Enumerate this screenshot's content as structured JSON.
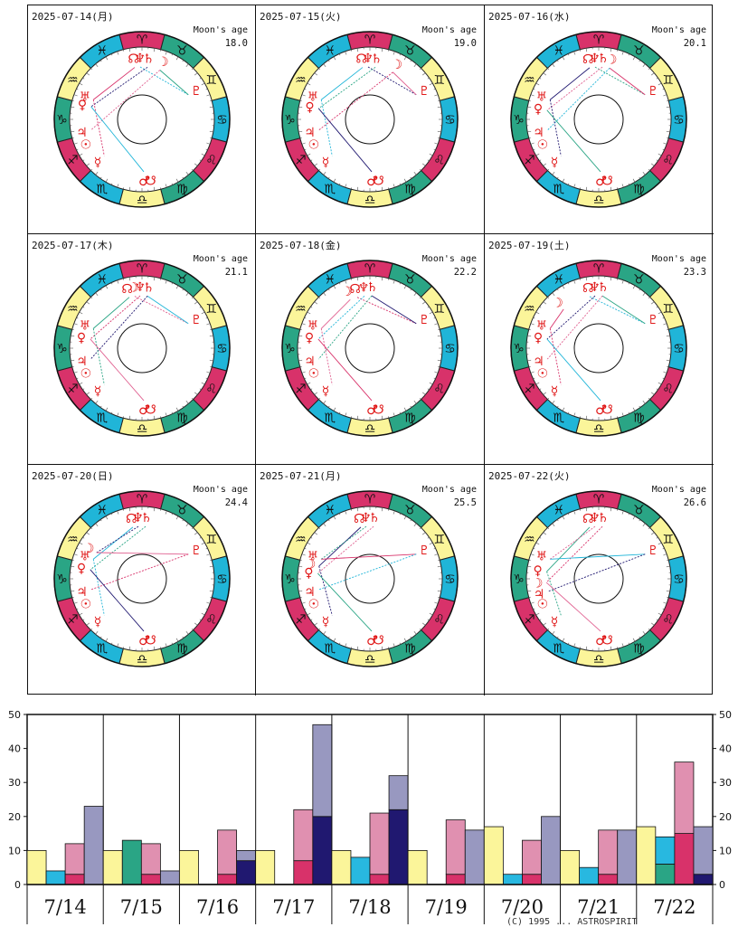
{
  "copyright": "(C) 1995  ... ASTROSPIRIT",
  "label_moons_age": "Moon's age",
  "sign_glyphs": [
    "♈",
    "♉",
    "♊",
    "♋",
    "♌",
    "♍",
    "♎",
    "♏",
    "♐",
    "♑",
    "♒",
    "♓"
  ],
  "sign_colors": [
    "#d8326a",
    "#2aa585",
    "#fbf59a",
    "#20b5d8",
    "#d8326a",
    "#2aa585",
    "#fbf59a",
    "#20b5d8",
    "#d8326a",
    "#2aa585",
    "#fbf59a",
    "#20b5d8"
  ],
  "cells": [
    {
      "date": "2025-07-14(月)",
      "moon_age": "18.0",
      "glyphs": [
        {
          "g": "☊",
          "l": 352
        },
        {
          "g": "♆",
          "l": 358
        },
        {
          "g": "♄",
          "l": 6
        },
        {
          "g": "☽",
          "l": 20
        },
        {
          "g": "♇",
          "l": 62
        },
        {
          "g": "♅",
          "l": 292
        },
        {
          "g": "♀",
          "l": 284
        },
        {
          "g": "♃",
          "l": 258
        },
        {
          "g": "☉",
          "l": 246
        },
        {
          "g": "☿",
          "l": 226
        },
        {
          "g": "♂",
          "l": 178
        },
        {
          "g": "☋",
          "l": 172
        }
      ]
    },
    {
      "date": "2025-07-15(火)",
      "moon_age": "19.0",
      "glyphs": [
        {
          "g": "☊",
          "l": 352
        },
        {
          "g": "♆",
          "l": 358
        },
        {
          "g": "♄",
          "l": 6
        },
        {
          "g": "☽",
          "l": 26
        },
        {
          "g": "♇",
          "l": 62
        },
        {
          "g": "♅",
          "l": 292
        },
        {
          "g": "♀",
          "l": 282
        },
        {
          "g": "♃",
          "l": 258
        },
        {
          "g": "☉",
          "l": 246
        },
        {
          "g": "☿",
          "l": 226
        },
        {
          "g": "♂",
          "l": 178
        },
        {
          "g": "☋",
          "l": 172
        }
      ]
    },
    {
      "date": "2025-07-16(水)",
      "moon_age": "20.1",
      "glyphs": [
        {
          "g": "☊",
          "l": 350
        },
        {
          "g": "♆",
          "l": 356
        },
        {
          "g": "♄",
          "l": 4
        },
        {
          "g": "☽",
          "l": 12
        },
        {
          "g": "♇",
          "l": 62
        },
        {
          "g": "♅",
          "l": 292
        },
        {
          "g": "♀",
          "l": 280
        },
        {
          "g": "♃",
          "l": 258
        },
        {
          "g": "☉",
          "l": 246
        },
        {
          "g": "☿",
          "l": 226
        },
        {
          "g": "♂",
          "l": 178
        },
        {
          "g": "☋",
          "l": 172
        }
      ]
    },
    {
      "date": "2025-07-17(木)",
      "moon_age": "21.1",
      "glyphs": [
        {
          "g": "☊",
          "l": 346
        },
        {
          "g": "☽",
          "l": 352
        },
        {
          "g": "♆",
          "l": 358
        },
        {
          "g": "♄",
          "l": 6
        },
        {
          "g": "♇",
          "l": 62
        },
        {
          "g": "♅",
          "l": 292
        },
        {
          "g": "♀",
          "l": 280
        },
        {
          "g": "♃",
          "l": 258
        },
        {
          "g": "☉",
          "l": 246
        },
        {
          "g": "☿",
          "l": 226
        },
        {
          "g": "♂",
          "l": 178
        },
        {
          "g": "☋",
          "l": 172
        }
      ]
    },
    {
      "date": "2025-07-18(金)",
      "moon_age": "22.2",
      "glyphs": [
        {
          "g": "☽",
          "l": 338
        },
        {
          "g": "☊",
          "l": 346
        },
        {
          "g": "♆",
          "l": 354
        },
        {
          "g": "♄",
          "l": 2
        },
        {
          "g": "♇",
          "l": 62
        },
        {
          "g": "♅",
          "l": 292
        },
        {
          "g": "♀",
          "l": 280
        },
        {
          "g": "♃",
          "l": 258
        },
        {
          "g": "☉",
          "l": 246
        },
        {
          "g": "☿",
          "l": 226
        },
        {
          "g": "♂",
          "l": 178
        },
        {
          "g": "☋",
          "l": 172
        }
      ]
    },
    {
      "date": "2025-07-19(土)",
      "moon_age": "23.3",
      "glyphs": [
        {
          "g": "☽",
          "l": 318
        },
        {
          "g": "☊",
          "l": 350
        },
        {
          "g": "♆",
          "l": 356
        },
        {
          "g": "♄",
          "l": 4
        },
        {
          "g": "♇",
          "l": 62
        },
        {
          "g": "♅",
          "l": 292
        },
        {
          "g": "♀",
          "l": 280
        },
        {
          "g": "♃",
          "l": 258
        },
        {
          "g": "☉",
          "l": 246
        },
        {
          "g": "☿",
          "l": 226
        },
        {
          "g": "♂",
          "l": 178
        },
        {
          "g": "☋",
          "l": 172
        }
      ]
    },
    {
      "date": "2025-07-20(日)",
      "moon_age": "24.4",
      "glyphs": [
        {
          "g": "☊",
          "l": 350
        },
        {
          "g": "♆",
          "l": 356
        },
        {
          "g": "♄",
          "l": 4
        },
        {
          "g": "♇",
          "l": 62
        },
        {
          "g": "☽",
          "l": 300
        },
        {
          "g": "♅",
          "l": 292
        },
        {
          "g": "♀",
          "l": 280
        },
        {
          "g": "♃",
          "l": 258
        },
        {
          "g": "☉",
          "l": 246
        },
        {
          "g": "☿",
          "l": 226
        },
        {
          "g": "♂",
          "l": 178
        },
        {
          "g": "☋",
          "l": 172
        }
      ]
    },
    {
      "date": "2025-07-21(月)",
      "moon_age": "25.5",
      "glyphs": [
        {
          "g": "☊",
          "l": 350
        },
        {
          "g": "♆",
          "l": 356
        },
        {
          "g": "♄",
          "l": 4
        },
        {
          "g": "♇",
          "l": 62
        },
        {
          "g": "♅",
          "l": 292
        },
        {
          "g": "☽",
          "l": 284
        },
        {
          "g": "♀",
          "l": 276
        },
        {
          "g": "♃",
          "l": 258
        },
        {
          "g": "☉",
          "l": 246
        },
        {
          "g": "☿",
          "l": 226
        },
        {
          "g": "♂",
          "l": 178
        },
        {
          "g": "☋",
          "l": 172
        }
      ]
    },
    {
      "date": "2025-07-22(火)",
      "moon_age": "26.6",
      "glyphs": [
        {
          "g": "☊",
          "l": 350
        },
        {
          "g": "♆",
          "l": 356
        },
        {
          "g": "♄",
          "l": 4
        },
        {
          "g": "♇",
          "l": 62
        },
        {
          "g": "♅",
          "l": 292
        },
        {
          "g": "♀",
          "l": 278
        },
        {
          "g": "☽",
          "l": 266
        },
        {
          "g": "♃",
          "l": 256
        },
        {
          "g": "☉",
          "l": 246
        },
        {
          "g": "☿",
          "l": 226
        },
        {
          "g": "♂",
          "l": 178
        },
        {
          "g": "☋",
          "l": 172
        }
      ]
    }
  ],
  "chart_data": {
    "type": "bar",
    "categories": [
      "7/14",
      "7/15",
      "7/16",
      "7/17",
      "7/18",
      "7/19",
      "7/20",
      "7/21",
      "7/22"
    ],
    "ylim": [
      0,
      50
    ],
    "yticks": [
      0,
      10,
      20,
      30,
      40,
      50
    ],
    "colors": {
      "yellow": "#fbf59a",
      "cyan": "#28b8e0",
      "green": "#2aa585",
      "pink": "#e090b0",
      "red": "#d8326a",
      "gray": "#9898c0",
      "navy": "#201870"
    },
    "days": [
      {
        "bars": [
          {
            "total": 10,
            "segs": [
              {
                "c": "yellow",
                "v": 10
              }
            ]
          },
          {
            "total": 4,
            "segs": [
              {
                "c": "cyan",
                "v": 4
              }
            ]
          },
          {
            "total": 12,
            "segs": [
              {
                "c": "red",
                "v": 3
              },
              {
                "c": "pink",
                "v": 9
              }
            ]
          },
          {
            "total": 23,
            "segs": [
              {
                "c": "gray",
                "v": 23
              }
            ]
          }
        ]
      },
      {
        "bars": [
          {
            "total": 10,
            "segs": [
              {
                "c": "yellow",
                "v": 10
              }
            ]
          },
          {
            "total": 13,
            "segs": [
              {
                "c": "green",
                "v": 13
              }
            ]
          },
          {
            "total": 12,
            "segs": [
              {
                "c": "red",
                "v": 3
              },
              {
                "c": "pink",
                "v": 9
              }
            ]
          },
          {
            "total": 4,
            "segs": [
              {
                "c": "gray",
                "v": 4
              }
            ]
          }
        ]
      },
      {
        "bars": [
          {
            "total": 10,
            "segs": [
              {
                "c": "yellow",
                "v": 10
              }
            ]
          },
          {
            "total": 0,
            "segs": []
          },
          {
            "total": 16,
            "segs": [
              {
                "c": "red",
                "v": 3
              },
              {
                "c": "pink",
                "v": 13
              }
            ]
          },
          {
            "total": 10,
            "segs": [
              {
                "c": "navy",
                "v": 7
              },
              {
                "c": "gray",
                "v": 3
              }
            ]
          }
        ]
      },
      {
        "bars": [
          {
            "total": 10,
            "segs": [
              {
                "c": "yellow",
                "v": 10
              }
            ]
          },
          {
            "total": 0,
            "segs": []
          },
          {
            "total": 22,
            "segs": [
              {
                "c": "red",
                "v": 7
              },
              {
                "c": "pink",
                "v": 15
              }
            ]
          },
          {
            "total": 47,
            "segs": [
              {
                "c": "navy",
                "v": 20
              },
              {
                "c": "gray",
                "v": 27
              }
            ]
          }
        ]
      },
      {
        "bars": [
          {
            "total": 10,
            "segs": [
              {
                "c": "yellow",
                "v": 10
              }
            ]
          },
          {
            "total": 8,
            "segs": [
              {
                "c": "cyan",
                "v": 8
              }
            ]
          },
          {
            "total": 21,
            "segs": [
              {
                "c": "red",
                "v": 3
              },
              {
                "c": "pink",
                "v": 18
              }
            ]
          },
          {
            "total": 32,
            "segs": [
              {
                "c": "navy",
                "v": 22
              },
              {
                "c": "gray",
                "v": 10
              }
            ]
          }
        ]
      },
      {
        "bars": [
          {
            "total": 10,
            "segs": [
              {
                "c": "yellow",
                "v": 10
              }
            ]
          },
          {
            "total": 0,
            "segs": []
          },
          {
            "total": 19,
            "segs": [
              {
                "c": "red",
                "v": 3
              },
              {
                "c": "pink",
                "v": 16
              }
            ]
          },
          {
            "total": 16,
            "segs": [
              {
                "c": "gray",
                "v": 16
              }
            ]
          }
        ]
      },
      {
        "bars": [
          {
            "total": 17,
            "segs": [
              {
                "c": "yellow",
                "v": 17
              }
            ]
          },
          {
            "total": 3,
            "segs": [
              {
                "c": "cyan",
                "v": 3
              }
            ]
          },
          {
            "total": 13,
            "segs": [
              {
                "c": "red",
                "v": 3
              },
              {
                "c": "pink",
                "v": 10
              }
            ]
          },
          {
            "total": 20,
            "segs": [
              {
                "c": "gray",
                "v": 20
              }
            ]
          }
        ]
      },
      {
        "bars": [
          {
            "total": 10,
            "segs": [
              {
                "c": "yellow",
                "v": 10
              }
            ]
          },
          {
            "total": 5,
            "segs": [
              {
                "c": "cyan",
                "v": 5
              }
            ]
          },
          {
            "total": 16,
            "segs": [
              {
                "c": "red",
                "v": 3
              },
              {
                "c": "pink",
                "v": 13
              }
            ]
          },
          {
            "total": 16,
            "segs": [
              {
                "c": "gray",
                "v": 16
              }
            ]
          }
        ]
      },
      {
        "bars": [
          {
            "total": 17,
            "segs": [
              {
                "c": "yellow",
                "v": 17
              }
            ]
          },
          {
            "total": 14,
            "segs": [
              {
                "c": "green",
                "v": 6
              },
              {
                "c": "cyan",
                "v": 8
              }
            ]
          },
          {
            "total": 36,
            "segs": [
              {
                "c": "red",
                "v": 15
              },
              {
                "c": "pink",
                "v": 21
              }
            ]
          },
          {
            "total": 17,
            "segs": [
              {
                "c": "navy",
                "v": 3
              },
              {
                "c": "gray",
                "v": 14
              }
            ]
          }
        ]
      }
    ]
  }
}
